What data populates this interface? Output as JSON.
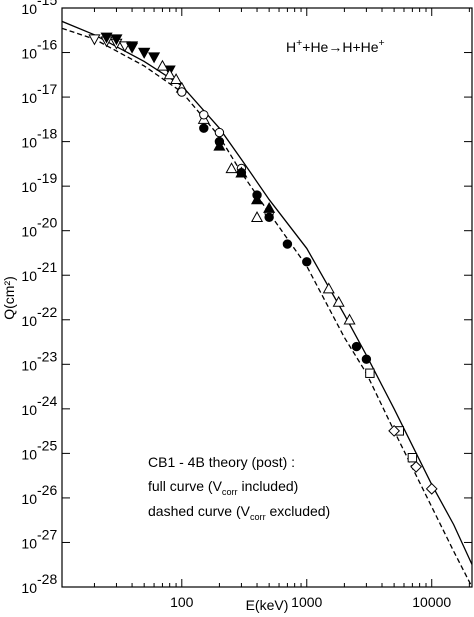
{
  "chart_data": {
    "type": "scatter",
    "x_label": "E(keV)",
    "y_label": "Q(cm²)",
    "x_log": true,
    "y_log": true,
    "minor_ticks": true,
    "xlim": [
      11,
      21000
    ],
    "ylim": [
      1e-28,
      1e-15
    ],
    "xticks": [
      100,
      1000,
      10000
    ],
    "yticks": [
      {
        "value": 1e-15,
        "label": "10",
        "exponent": "-15"
      },
      {
        "value": 1e-16,
        "label": "10",
        "exponent": "-16"
      },
      {
        "value": 1e-17,
        "label": "10",
        "exponent": "-17"
      },
      {
        "value": 1e-18,
        "label": "10",
        "exponent": "-18"
      },
      {
        "value": 1e-19,
        "label": "10",
        "exponent": "-19"
      },
      {
        "value": 1e-20,
        "label": "10",
        "exponent": "-20"
      },
      {
        "value": 1e-21,
        "label": "10",
        "exponent": "-21"
      },
      {
        "value": 1e-22,
        "label": "10",
        "exponent": "-22"
      },
      {
        "value": 1e-23,
        "label": "10",
        "exponent": "-23"
      },
      {
        "value": 1e-24,
        "label": "10",
        "exponent": "-24"
      },
      {
        "value": 1e-25,
        "label": "10",
        "exponent": "-25"
      },
      {
        "value": 1e-26,
        "label": "10",
        "exponent": "-26"
      },
      {
        "value": 1e-27,
        "label": "10",
        "exponent": "-27"
      },
      {
        "value": 1e-28,
        "label": "10",
        "exponent": "-28"
      }
    ],
    "annotations": [
      {
        "segments": [
          {
            "text": "H"
          },
          {
            "text": "+",
            "sup": true
          },
          {
            "text": "+He→H+He"
          },
          {
            "text": "+",
            "sup": true
          }
        ]
      },
      {
        "segments": [
          {
            "text": "CB1 - 4B theory (post) :"
          }
        ]
      },
      {
        "segments": [
          {
            "text": "full curve (V"
          },
          {
            "text": "corr",
            "sub": true
          },
          {
            "text": " included)"
          }
        ]
      },
      {
        "segments": [
          {
            "text": "dashed curve (V"
          },
          {
            "text": "corr",
            "sub": true
          },
          {
            "text": " excluded)"
          }
        ]
      }
    ],
    "series": [
      {
        "kind": "line",
        "dash": false,
        "color": "#000000",
        "x": [
          11,
          20,
          50,
          100,
          200,
          300,
          500,
          1000,
          2000,
          3000,
          5000,
          10000,
          15000,
          21000
        ],
        "values": [
          5e-16,
          2.5e-16,
          6.3e-17,
          1.8e-17,
          2e-18,
          4e-19,
          5e-20,
          4e-21,
          1.3e-22,
          1.6e-23,
          1e-24,
          2e-26,
          2.5e-27,
          3.2e-28
        ]
      },
      {
        "kind": "line",
        "dash": true,
        "color": "#000000",
        "x": [
          11,
          20,
          50,
          100,
          200,
          300,
          500,
          1000,
          2000,
          3000,
          5000,
          10000,
          15000,
          21000
        ],
        "values": [
          3.5e-16,
          2e-16,
          5e-17,
          1.3e-17,
          1.3e-18,
          2e-19,
          2.5e-20,
          1.6e-21,
          4e-23,
          6.3e-24,
          3.2e-25,
          6.3e-27,
          6.3e-28,
          1e-28
        ]
      },
      {
        "kind": "points",
        "marker": "triangle-down",
        "filled": false,
        "color": "#000000",
        "x": [
          20,
          25,
          30,
          35,
          40,
          50
        ],
        "values": [
          2e-16,
          1.8e-16,
          1.6e-16,
          1.4e-16,
          1.3e-16,
          1e-16
        ]
      },
      {
        "kind": "points",
        "marker": "triangle-down",
        "filled": true,
        "color": "#000000",
        "x": [
          25,
          30,
          40,
          50,
          60,
          80
        ],
        "values": [
          2.2e-16,
          2e-16,
          1.4e-16,
          1e-16,
          7.9e-17,
          4e-17
        ]
      },
      {
        "kind": "points",
        "marker": "triangle-up",
        "filled": false,
        "color": "#000000",
        "x": [
          70,
          80,
          90,
          100,
          150,
          250,
          400,
          1500,
          1800,
          2200
        ],
        "values": [
          5e-17,
          3.2e-17,
          2.5e-17,
          1.6e-17,
          3.2e-18,
          2.5e-19,
          2e-20,
          5e-22,
          2.5e-22,
          1e-22
        ]
      },
      {
        "kind": "points",
        "marker": "circle",
        "filled": false,
        "color": "#000000",
        "x": [
          100,
          150,
          200,
          300,
          500
        ],
        "values": [
          1.3e-17,
          4e-18,
          1.6e-18,
          2.5e-19,
          2.5e-20
        ]
      },
      {
        "kind": "points",
        "marker": "circle",
        "filled": true,
        "color": "#000000",
        "x": [
          150,
          200,
          300,
          400,
          500,
          700,
          1000,
          2500,
          3000
        ],
        "values": [
          2e-18,
          1e-18,
          2e-19,
          6.3e-20,
          2e-20,
          5e-21,
          2e-21,
          2.5e-23,
          1.3e-23
        ]
      },
      {
        "kind": "points",
        "marker": "triangle-up",
        "filled": true,
        "color": "#000000",
        "x": [
          200,
          300,
          400,
          500
        ],
        "values": [
          8e-19,
          2e-19,
          5e-20,
          3.2e-20
        ]
      },
      {
        "kind": "points",
        "marker": "square",
        "filled": false,
        "color": "#000000",
        "x": [
          3200,
          5500,
          7000
        ],
        "values": [
          6.3e-24,
          3.2e-25,
          8e-26
        ]
      },
      {
        "kind": "points",
        "marker": "diamond",
        "filled": false,
        "color": "#000000",
        "x": [
          5000,
          7500,
          10000
        ],
        "values": [
          3.2e-25,
          5e-26,
          1.6e-26
        ]
      }
    ]
  }
}
